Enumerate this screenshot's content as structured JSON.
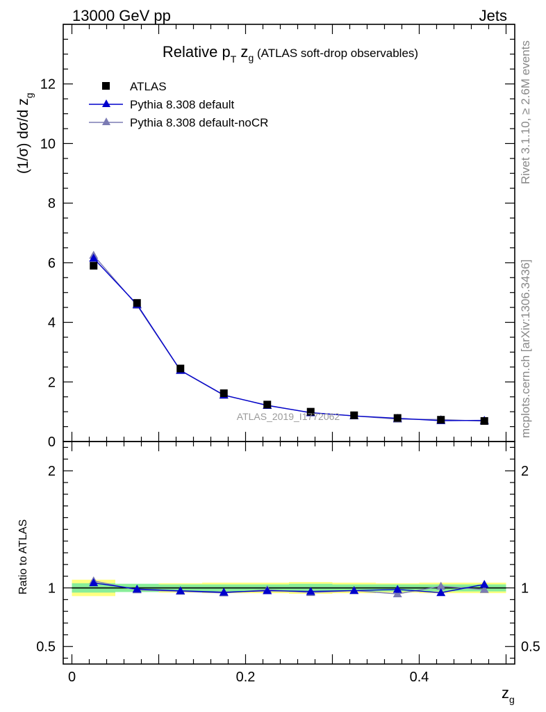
{
  "header": {
    "left": "13000 GeV pp",
    "right": "Jets"
  },
  "side_labels": {
    "rivet": "Rivet 3.1.10, ≥ 2.6M events",
    "mcplots": "mcplots.cern.ch [arXiv:1306.3436]"
  },
  "chart_data": {
    "type": "scatter",
    "title": {
      "prefix": "Relative p",
      "sub1": "T",
      "mid": " z",
      "sub2": "g",
      "suffix": " (ATLAS soft-drop observables)"
    },
    "analysis_id": "ATLAS_2019_I1772062",
    "main": {
      "ylabel_main": "(1/σ) dσ/d z",
      "ylabel_sub": "g",
      "ylim": [
        0,
        14
      ],
      "yticks": [
        0,
        2,
        4,
        6,
        8,
        10,
        12
      ],
      "ytick_labels": [
        "0",
        "2",
        "4",
        "6",
        "8",
        "10",
        "12"
      ]
    },
    "ratio": {
      "ylabel": "Ratio to ATLAS",
      "ylim": [
        0.35,
        2.25
      ],
      "yticks": [
        0.5,
        1,
        2
      ],
      "ytick_labels": [
        "0.5",
        "1",
        "2"
      ],
      "band_inner": [
        0.04,
        0.035,
        0.03,
        0.03,
        0.03,
        0.035,
        0.03,
        0.03,
        0.03,
        0.03
      ],
      "band_outer": [
        0.07,
        0.03,
        0.04,
        0.045,
        0.045,
        0.05,
        0.045,
        0.04,
        0.045,
        0.045
      ]
    },
    "xlabel_main": "z",
    "xlabel_sub": "g",
    "xlim": [
      -0.01,
      0.51
    ],
    "xticks": [
      0,
      0.2,
      0.4
    ],
    "xtick_labels": [
      "0",
      "0.2",
      "0.4"
    ],
    "x": [
      0.025,
      0.075,
      0.125,
      0.175,
      0.225,
      0.275,
      0.325,
      0.375,
      0.425,
      0.475
    ],
    "bin_edges": [
      0,
      0.05,
      0.1,
      0.15,
      0.2,
      0.25,
      0.3,
      0.35,
      0.4,
      0.45,
      0.5
    ],
    "series": [
      {
        "name": "ATLAS",
        "color": "#000000",
        "marker": "square",
        "values": [
          5.9,
          4.65,
          2.45,
          1.62,
          1.24,
          1.0,
          0.88,
          0.79,
          0.73,
          0.69
        ]
      },
      {
        "name": "Pythia 8.308 default",
        "color": "#0000cc",
        "marker": "triangle",
        "values": [
          6.15,
          4.6,
          2.39,
          1.56,
          1.21,
          0.97,
          0.86,
          0.78,
          0.7,
          0.71
        ],
        "ratio": [
          1.043,
          0.99,
          0.975,
          0.963,
          0.976,
          0.97,
          0.977,
          0.987,
          0.959,
          1.03
        ]
      },
      {
        "name": "Pythia 8.308 default-noCR",
        "color": "#7b7bb3",
        "marker": "triangle",
        "values": [
          6.25,
          4.57,
          2.38,
          1.55,
          1.22,
          0.96,
          0.86,
          0.75,
          0.74,
          0.68
        ],
        "ratio": [
          1.06,
          0.983,
          0.971,
          0.957,
          0.984,
          0.96,
          0.977,
          0.949,
          1.014,
          0.986
        ]
      }
    ]
  }
}
